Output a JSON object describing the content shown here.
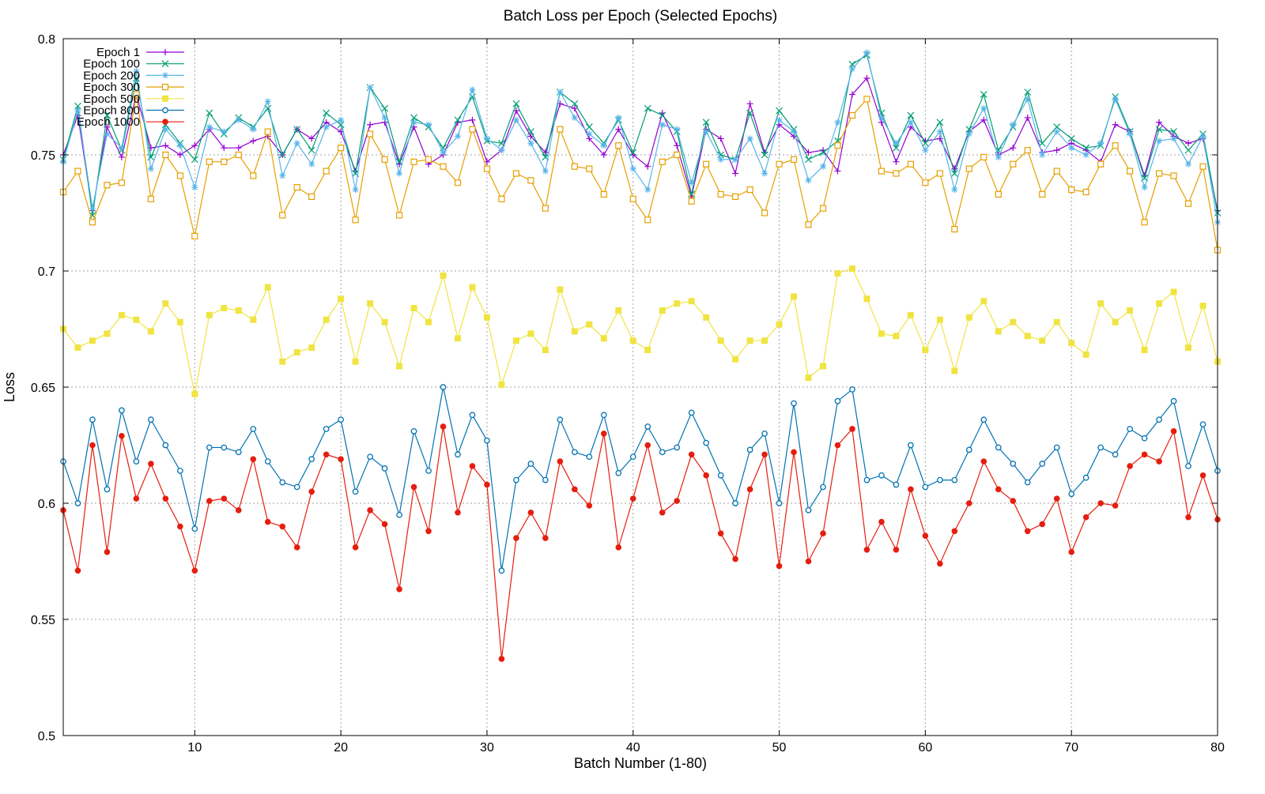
{
  "chart_data": {
    "type": "line",
    "title": "Batch Loss per Epoch (Selected Epochs)",
    "xlabel": "Batch Number (1-80)",
    "ylabel": "Loss",
    "xlim": [
      1,
      80
    ],
    "ylim": [
      0.5,
      0.8
    ],
    "x_ticks": [
      10,
      20,
      30,
      40,
      50,
      60,
      70,
      80
    ],
    "y_ticks": [
      0.5,
      0.55,
      0.6,
      0.65,
      0.7,
      0.75,
      0.8
    ],
    "y_tick_labels": [
      "0.5",
      "0.55",
      "0.6",
      "0.65",
      "0.7",
      "0.75",
      "0.8"
    ],
    "grid": true,
    "legend_position": "top-left",
    "x": [
      1,
      2,
      3,
      4,
      5,
      6,
      7,
      8,
      9,
      10,
      11,
      12,
      13,
      14,
      15,
      16,
      17,
      18,
      19,
      20,
      21,
      22,
      23,
      24,
      25,
      26,
      27,
      28,
      29,
      30,
      31,
      32,
      33,
      34,
      35,
      36,
      37,
      38,
      39,
      40,
      41,
      42,
      43,
      44,
      45,
      46,
      47,
      48,
      49,
      50,
      51,
      52,
      53,
      54,
      55,
      56,
      57,
      58,
      59,
      60,
      61,
      62,
      63,
      64,
      65,
      66,
      67,
      68,
      69,
      70,
      71,
      72,
      73,
      74,
      75,
      76,
      77,
      78,
      79,
      80
    ],
    "series": [
      {
        "name": "Epoch 1",
        "color": "#9400d3",
        "marker": "plus",
        "values": [
          0.75,
          0.767,
          0.726,
          0.762,
          0.749,
          0.776,
          0.753,
          0.754,
          0.75,
          0.754,
          0.761,
          0.753,
          0.753,
          0.756,
          0.758,
          0.75,
          0.761,
          0.757,
          0.764,
          0.76,
          0.743,
          0.763,
          0.764,
          0.746,
          0.762,
          0.746,
          0.75,
          0.764,
          0.765,
          0.747,
          0.752,
          0.769,
          0.758,
          0.751,
          0.772,
          0.77,
          0.757,
          0.75,
          0.761,
          0.75,
          0.745,
          0.768,
          0.754,
          0.732,
          0.761,
          0.757,
          0.742,
          0.772,
          0.751,
          0.763,
          0.758,
          0.751,
          0.752,
          0.743,
          0.776,
          0.783,
          0.764,
          0.747,
          0.762,
          0.756,
          0.757,
          0.744,
          0.76,
          0.765,
          0.75,
          0.753,
          0.766,
          0.751,
          0.752,
          0.755,
          0.752,
          0.747,
          0.763,
          0.76,
          0.741,
          0.764,
          0.758,
          0.755,
          0.757,
          0.726
        ]
      },
      {
        "name": "Epoch 100",
        "color": "#009e73",
        "marker": "cross",
        "values": [
          0.748,
          0.771,
          0.724,
          0.767,
          0.752,
          0.783,
          0.749,
          0.763,
          0.755,
          0.748,
          0.768,
          0.759,
          0.766,
          0.762,
          0.77,
          0.75,
          0.761,
          0.752,
          0.768,
          0.763,
          0.742,
          0.779,
          0.77,
          0.747,
          0.766,
          0.762,
          0.753,
          0.765,
          0.775,
          0.756,
          0.755,
          0.772,
          0.76,
          0.749,
          0.777,
          0.772,
          0.762,
          0.755,
          0.765,
          0.751,
          0.77,
          0.767,
          0.76,
          0.733,
          0.764,
          0.75,
          0.748,
          0.768,
          0.75,
          0.769,
          0.761,
          0.748,
          0.751,
          0.756,
          0.789,
          0.793,
          0.768,
          0.753,
          0.767,
          0.755,
          0.764,
          0.742,
          0.761,
          0.776,
          0.752,
          0.762,
          0.777,
          0.755,
          0.762,
          0.757,
          0.753,
          0.754,
          0.775,
          0.76,
          0.74,
          0.761,
          0.76,
          0.752,
          0.759,
          0.725
        ]
      },
      {
        "name": "Epoch 200",
        "color": "#56b4e9",
        "marker": "star",
        "values": [
          0.747,
          0.769,
          0.727,
          0.759,
          0.753,
          0.786,
          0.744,
          0.761,
          0.754,
          0.736,
          0.762,
          0.76,
          0.765,
          0.761,
          0.773,
          0.741,
          0.755,
          0.746,
          0.762,
          0.765,
          0.735,
          0.779,
          0.766,
          0.742,
          0.764,
          0.763,
          0.751,
          0.758,
          0.778,
          0.757,
          0.752,
          0.765,
          0.755,
          0.743,
          0.777,
          0.766,
          0.759,
          0.754,
          0.766,
          0.744,
          0.735,
          0.763,
          0.761,
          0.738,
          0.76,
          0.748,
          0.748,
          0.757,
          0.742,
          0.765,
          0.76,
          0.739,
          0.745,
          0.764,
          0.787,
          0.794,
          0.766,
          0.755,
          0.764,
          0.752,
          0.76,
          0.735,
          0.759,
          0.77,
          0.749,
          0.763,
          0.774,
          0.75,
          0.76,
          0.753,
          0.75,
          0.755,
          0.774,
          0.759,
          0.736,
          0.756,
          0.757,
          0.746,
          0.758,
          0.721
        ]
      },
      {
        "name": "Epoch 300",
        "color": "#e69f00",
        "marker": "square",
        "values": [
          0.734,
          0.743,
          0.721,
          0.737,
          0.738,
          0.776,
          0.731,
          0.75,
          0.741,
          0.715,
          0.747,
          0.747,
          0.75,
          0.741,
          0.76,
          0.724,
          0.736,
          0.732,
          0.743,
          0.753,
          0.722,
          0.759,
          0.748,
          0.724,
          0.747,
          0.748,
          0.745,
          0.738,
          0.761,
          0.744,
          0.731,
          0.742,
          0.739,
          0.727,
          0.761,
          0.745,
          0.744,
          0.733,
          0.754,
          0.731,
          0.722,
          0.747,
          0.75,
          0.73,
          0.746,
          0.733,
          0.732,
          0.735,
          0.725,
          0.746,
          0.748,
          0.72,
          0.727,
          0.754,
          0.767,
          0.774,
          0.743,
          0.742,
          0.746,
          0.738,
          0.742,
          0.718,
          0.744,
          0.749,
          0.733,
          0.746,
          0.752,
          0.733,
          0.743,
          0.735,
          0.734,
          0.746,
          0.754,
          0.743,
          0.721,
          0.742,
          0.741,
          0.729,
          0.745,
          0.709
        ]
      },
      {
        "name": "Epoch 500",
        "color": "#f0e442",
        "marker": "filled-square",
        "values": [
          0.675,
          0.667,
          0.67,
          0.673,
          0.681,
          0.679,
          0.674,
          0.686,
          0.678,
          0.647,
          0.681,
          0.684,
          0.683,
          0.679,
          0.693,
          0.661,
          0.665,
          0.667,
          0.679,
          0.688,
          0.661,
          0.686,
          0.678,
          0.659,
          0.684,
          0.678,
          0.698,
          0.671,
          0.693,
          0.68,
          0.651,
          0.67,
          0.673,
          0.666,
          0.692,
          0.674,
          0.677,
          0.671,
          0.683,
          0.67,
          0.666,
          0.683,
          0.686,
          0.687,
          0.68,
          0.67,
          0.662,
          0.67,
          0.67,
          0.677,
          0.689,
          0.654,
          0.659,
          0.699,
          0.701,
          0.688,
          0.673,
          0.672,
          0.681,
          0.666,
          0.679,
          0.657,
          0.68,
          0.687,
          0.674,
          0.678,
          0.672,
          0.67,
          0.678,
          0.669,
          0.664,
          0.686,
          0.678,
          0.683,
          0.666,
          0.686,
          0.691,
          0.667,
          0.685,
          0.661
        ]
      },
      {
        "name": "Epoch 800",
        "color": "#0072b2",
        "marker": "circle",
        "values": [
          0.618,
          0.6,
          0.636,
          0.606,
          0.64,
          0.618,
          0.636,
          0.625,
          0.614,
          0.589,
          0.624,
          0.624,
          0.622,
          0.632,
          0.618,
          0.609,
          0.607,
          0.619,
          0.632,
          0.636,
          0.605,
          0.62,
          0.615,
          0.595,
          0.631,
          0.614,
          0.65,
          0.621,
          0.638,
          0.627,
          0.571,
          0.61,
          0.617,
          0.61,
          0.636,
          0.622,
          0.62,
          0.638,
          0.613,
          0.62,
          0.633,
          0.622,
          0.624,
          0.639,
          0.626,
          0.612,
          0.6,
          0.623,
          0.63,
          0.6,
          0.643,
          0.597,
          0.607,
          0.644,
          0.649,
          0.61,
          0.612,
          0.608,
          0.625,
          0.607,
          0.61,
          0.61,
          0.623,
          0.636,
          0.624,
          0.617,
          0.609,
          0.617,
          0.624,
          0.604,
          0.611,
          0.624,
          0.621,
          0.632,
          0.628,
          0.636,
          0.644,
          0.616,
          0.634,
          0.614
        ]
      },
      {
        "name": "Epoch 1000",
        "color": "#e51e10",
        "marker": "filled-circle",
        "values": [
          0.597,
          0.571,
          0.625,
          0.579,
          0.629,
          0.602,
          0.617,
          0.602,
          0.59,
          0.571,
          0.601,
          0.602,
          0.597,
          0.619,
          0.592,
          0.59,
          0.581,
          0.605,
          0.621,
          0.619,
          0.581,
          0.597,
          0.591,
          0.563,
          0.607,
          0.588,
          0.633,
          0.596,
          0.616,
          0.608,
          0.533,
          0.585,
          0.596,
          0.585,
          0.618,
          0.606,
          0.599,
          0.63,
          0.581,
          0.602,
          0.625,
          0.596,
          0.601,
          0.621,
          0.612,
          0.587,
          0.576,
          0.606,
          0.621,
          0.573,
          0.622,
          0.575,
          0.587,
          0.625,
          0.632,
          0.58,
          0.592,
          0.58,
          0.606,
          0.586,
          0.574,
          0.588,
          0.6,
          0.618,
          0.606,
          0.601,
          0.588,
          0.591,
          0.602,
          0.579,
          0.594,
          0.6,
          0.599,
          0.616,
          0.621,
          0.618,
          0.631,
          0.594,
          0.612,
          0.593
        ]
      }
    ]
  }
}
